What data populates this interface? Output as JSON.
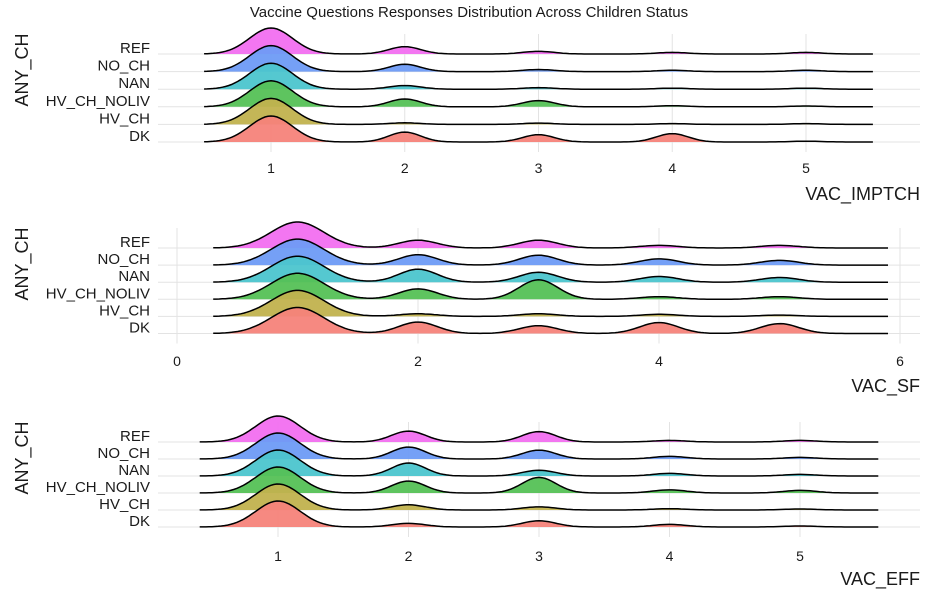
{
  "title": "Vaccine Questions Responses Distribution Across Children Status",
  "colors": {
    "REF": "#f26ff0",
    "NO_CH": "#6e9bf5",
    "NAN": "#4cc5cd",
    "HV_CH_NOLIV": "#55c156",
    "HV_CH": "#c1b24e",
    "DK": "#f6837a",
    "outline": "#000000",
    "grid": "#e3e3e3"
  },
  "chart_data": [
    {
      "type": "ridgeline",
      "xlabel": "VAC_IMPTCH",
      "ylabel": "ANY_CH",
      "categories": [
        "REF",
        "NO_CH",
        "NAN",
        "HV_CH_NOLIV",
        "HV_CH",
        "DK"
      ],
      "xticks": [
        1,
        2,
        3,
        4,
        5
      ],
      "xlim": [
        0.5,
        5.5
      ],
      "grid": true,
      "series": [
        {
          "name": "REF",
          "peaks": [
            [
              1,
              1.0
            ],
            [
              2,
              0.28
            ],
            [
              3,
              0.1
            ],
            [
              4,
              0.06
            ],
            [
              5,
              0.06
            ]
          ]
        },
        {
          "name": "NO_CH",
          "peaks": [
            [
              1,
              1.0
            ],
            [
              2,
              0.28
            ],
            [
              3,
              0.08
            ],
            [
              4,
              0.05
            ],
            [
              5,
              0.05
            ]
          ]
        },
        {
          "name": "NAN",
          "peaks": [
            [
              1,
              1.0
            ],
            [
              2,
              0.14
            ],
            [
              3,
              0.06
            ],
            [
              4,
              0.04
            ],
            [
              5,
              0.04
            ]
          ]
        },
        {
          "name": "HV_CH_NOLIV",
          "peaks": [
            [
              1,
              1.0
            ],
            [
              2,
              0.3
            ],
            [
              3,
              0.24
            ],
            [
              4,
              0.04
            ],
            [
              5,
              0.03
            ]
          ]
        },
        {
          "name": "HV_CH",
          "peaks": [
            [
              1,
              1.0
            ],
            [
              2,
              0.06
            ],
            [
              3,
              0.05
            ],
            [
              4,
              0.03
            ],
            [
              5,
              0.03
            ]
          ]
        },
        {
          "name": "DK",
          "peaks": [
            [
              1,
              1.0
            ],
            [
              2,
              0.38
            ],
            [
              3,
              0.28
            ],
            [
              4,
              0.32
            ],
            [
              5,
              0.03
            ]
          ]
        }
      ]
    },
    {
      "type": "ridgeline",
      "xlabel": "VAC_SF",
      "ylabel": "ANY_CH",
      "categories": [
        "REF",
        "NO_CH",
        "NAN",
        "HV_CH_NOLIV",
        "HV_CH",
        "DK"
      ],
      "xticks": [
        0,
        2,
        4,
        6
      ],
      "xlim": [
        0.3,
        5.9
      ],
      "grid": true,
      "series": [
        {
          "name": "REF",
          "peaks": [
            [
              1,
              1.0
            ],
            [
              2,
              0.3
            ],
            [
              3,
              0.3
            ],
            [
              4,
              0.1
            ],
            [
              5,
              0.1
            ]
          ]
        },
        {
          "name": "NO_CH",
          "peaks": [
            [
              1,
              1.0
            ],
            [
              2,
              0.4
            ],
            [
              3,
              0.38
            ],
            [
              4,
              0.24
            ],
            [
              5,
              0.18
            ]
          ]
        },
        {
          "name": "NAN",
          "peaks": [
            [
              1,
              1.0
            ],
            [
              2,
              0.5
            ],
            [
              3,
              0.38
            ],
            [
              4,
              0.22
            ],
            [
              5,
              0.18
            ]
          ]
        },
        {
          "name": "HV_CH_NOLIV",
          "peaks": [
            [
              1,
              1.0
            ],
            [
              2,
              0.4
            ],
            [
              3,
              0.75
            ],
            [
              4,
              0.1
            ],
            [
              5,
              0.1
            ]
          ]
        },
        {
          "name": "HV_CH",
          "peaks": [
            [
              1,
              1.0
            ],
            [
              2,
              0.1
            ],
            [
              3,
              0.1
            ],
            [
              4,
              0.08
            ],
            [
              5,
              0.05
            ]
          ]
        },
        {
          "name": "DK",
          "peaks": [
            [
              1,
              1.0
            ],
            [
              2,
              0.44
            ],
            [
              3,
              0.3
            ],
            [
              4,
              0.42
            ],
            [
              5,
              0.38
            ]
          ]
        }
      ]
    },
    {
      "type": "ridgeline",
      "xlabel": "VAC_EFF",
      "ylabel": "ANY_CH",
      "categories": [
        "REF",
        "NO_CH",
        "NAN",
        "HV_CH_NOLIV",
        "HV_CH",
        "DK"
      ],
      "xticks": [
        1,
        2,
        3,
        4,
        5
      ],
      "xlim": [
        0.4,
        5.6
      ],
      "grid": true,
      "series": [
        {
          "name": "REF",
          "peaks": [
            [
              1,
              1.0
            ],
            [
              2,
              0.42
            ],
            [
              3,
              0.4
            ],
            [
              4,
              0.06
            ],
            [
              5,
              0.06
            ]
          ]
        },
        {
          "name": "NO_CH",
          "peaks": [
            [
              1,
              1.0
            ],
            [
              2,
              0.46
            ],
            [
              3,
              0.34
            ],
            [
              4,
              0.1
            ],
            [
              5,
              0.06
            ]
          ]
        },
        {
          "name": "NAN",
          "peaks": [
            [
              1,
              1.0
            ],
            [
              2,
              0.5
            ],
            [
              3,
              0.22
            ],
            [
              4,
              0.1
            ],
            [
              5,
              0.06
            ]
          ]
        },
        {
          "name": "HV_CH_NOLIV",
          "peaks": [
            [
              1,
              1.0
            ],
            [
              2,
              0.46
            ],
            [
              3,
              0.6
            ],
            [
              4,
              0.12
            ],
            [
              5,
              0.1
            ]
          ]
        },
        {
          "name": "HV_CH",
          "peaks": [
            [
              1,
              1.0
            ],
            [
              2,
              0.2
            ],
            [
              3,
              0.12
            ],
            [
              4,
              0.05
            ],
            [
              5,
              0.04
            ]
          ]
        },
        {
          "name": "DK",
          "peaks": [
            [
              1,
              1.0
            ],
            [
              2,
              0.14
            ],
            [
              3,
              0.24
            ],
            [
              4,
              0.1
            ],
            [
              5,
              0.04
            ]
          ]
        }
      ]
    }
  ]
}
